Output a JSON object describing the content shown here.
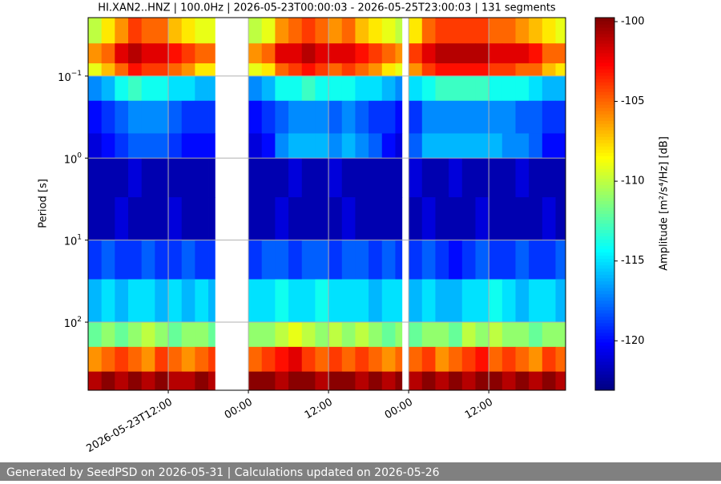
{
  "chart_data": {
    "type": "heatmap",
    "title": "HI.XAN2..HNZ | 100.0Hz | 2026-05-23T00:00:03 - 2026-05-25T23:00:03 | 131 segments",
    "ylabel": "Period [s]",
    "colorbar_label": "Amplitude [m²/s⁴/Hz] [dB]",
    "footer": "Generated by SeedPSD on 2026-05-31 | Calculations updated on 2026-05-26",
    "colormap": "jet",
    "yscale": "log",
    "y_inverted": true,
    "grid": true,
    "xlim": [
      "2026-05-23T00:00",
      "2026-05-25T23:30"
    ],
    "xticks": [
      {
        "value": "2026-05-23T12:00",
        "label": "2026-05-23T12:00"
      },
      {
        "value": "2026-05-24T00:00",
        "label": "00:00"
      },
      {
        "value": "2026-05-24T12:00",
        "label": "12:00"
      },
      {
        "value": "2026-05-25T00:00",
        "label": "00:00"
      },
      {
        "value": "2026-05-25T12:00",
        "label": "12:00"
      }
    ],
    "ylim": [
      0.0194,
      676
    ],
    "yticks": [
      {
        "value": 0.1,
        "label": "10",
        "exponent": "−1"
      },
      {
        "value": 1,
        "label": "10",
        "exponent": "0"
      },
      {
        "value": 10,
        "label": "10",
        "exponent": "1"
      },
      {
        "value": 100,
        "label": "10",
        "exponent": "2"
      }
    ],
    "clim": [
      -123.1,
      -99.75
    ],
    "cticks": [
      -100,
      -105,
      -110,
      -115,
      -120
    ],
    "x_edges": [
      "2026-05-23T00:00",
      "2026-05-23T02:00",
      "2026-05-23T04:00",
      "2026-05-23T06:00",
      "2026-05-23T08:00",
      "2026-05-23T10:00",
      "2026-05-23T12:00",
      "2026-05-23T14:00",
      "2026-05-23T16:00",
      "2026-05-23T18:00",
      "2026-05-23T19:00",
      "2026-05-24T00:00",
      "2026-05-24T02:00",
      "2026-05-24T04:00",
      "2026-05-24T06:00",
      "2026-05-24T08:00",
      "2026-05-24T10:00",
      "2026-05-24T12:00",
      "2026-05-24T14:00",
      "2026-05-24T16:00",
      "2026-05-24T18:00",
      "2026-05-24T20:00",
      "2026-05-24T22:00",
      "2026-05-24T23:00",
      "2026-05-25T00:00",
      "2026-05-25T02:00",
      "2026-05-25T04:00",
      "2026-05-25T06:00",
      "2026-05-25T08:00",
      "2026-05-25T10:00",
      "2026-05-25T12:00",
      "2026-05-25T14:00",
      "2026-05-25T16:00",
      "2026-05-25T18:00",
      "2026-05-25T20:00",
      "2026-05-25T22:00",
      "2026-05-25T23:30"
    ],
    "y_edges": [
      0.0194,
      0.04,
      0.07,
      0.1,
      0.2,
      0.5,
      1,
      3,
      10,
      30,
      100,
      200,
      400,
      676
    ],
    "z": [
      [
        -110,
        -108,
        -106,
        -104,
        -105,
        -105,
        -107,
        -108,
        -109,
        -109,
        null,
        -110,
        -109,
        -106,
        -105,
        -104,
        -105,
        -106,
        -105,
        -107,
        -108,
        -109,
        -110,
        null,
        -108,
        -105,
        -104,
        -104,
        -104,
        -104,
        -105,
        -105,
        -106,
        -107,
        -108,
        -109
      ],
      [
        -106,
        -105,
        -102,
        -101,
        -102,
        -102,
        -103,
        -104,
        -105,
        -105,
        null,
        -106,
        -105,
        -102,
        -102,
        -101,
        -102,
        -102,
        -102,
        -103,
        -104,
        -105,
        -106,
        null,
        -104,
        -102,
        -101,
        -101,
        -101,
        -101,
        -102,
        -102,
        -102,
        -103,
        -105,
        -105
      ],
      [
        -109,
        -107,
        -105,
        -103,
        -104,
        -104,
        -105,
        -106,
        -108,
        -108,
        null,
        -109,
        -108,
        -105,
        -104,
        -103,
        -104,
        -105,
        -104,
        -105,
        -106,
        -108,
        -109,
        null,
        -106,
        -104,
        -103,
        -103,
        -103,
        -103,
        -104,
        -104,
        -105,
        -105,
        -107,
        -108
      ],
      [
        -117,
        -116,
        -114,
        -113,
        -114,
        -114,
        -115,
        -115,
        -116,
        -116,
        null,
        -117,
        -116,
        -114,
        -114,
        -113,
        -114,
        -114,
        -114,
        -115,
        -115,
        -116,
        -117,
        null,
        -115,
        -114,
        -113,
        -113,
        -113,
        -113,
        -114,
        -114,
        -114,
        -115,
        -116,
        -116
      ],
      [
        -120,
        -119,
        -118,
        -117,
        -117,
        -117,
        -118,
        -119,
        -119,
        -119,
        null,
        -120,
        -119,
        -118,
        -117,
        -117,
        -117,
        -118,
        -117,
        -118,
        -119,
        -119,
        -120,
        null,
        -119,
        -117,
        -117,
        -117,
        -117,
        -117,
        -117,
        -117,
        -118,
        -118,
        -119,
        -119
      ],
      [
        -121,
        -120,
        -119,
        -118,
        -118,
        -118,
        -119,
        -120,
        -120,
        -120,
        null,
        -121,
        -120,
        -117,
        -116,
        -116,
        -116,
        -117,
        -116,
        -117,
        -118,
        -120,
        -121,
        null,
        -118,
        -116,
        -116,
        -116,
        -116,
        -116,
        -116,
        -117,
        -117,
        -118,
        -120,
        -120
      ],
      [
        -122,
        -122,
        -122,
        -121,
        -122,
        -122,
        -122,
        -122,
        -122,
        -122,
        null,
        -122,
        -122,
        -122,
        -121,
        -122,
        -122,
        -121,
        -122,
        -122,
        -122,
        -122,
        -122,
        null,
        -121,
        -122,
        -122,
        -121,
        -122,
        -122,
        -122,
        -122,
        -121,
        -122,
        -122,
        -122
      ],
      [
        -122,
        -122,
        -121,
        -122,
        -122,
        -122,
        -121,
        -122,
        -122,
        -122,
        null,
        -122,
        -122,
        -121,
        -122,
        -122,
        -122,
        -122,
        -121,
        -122,
        -122,
        -122,
        -122,
        null,
        -122,
        -121,
        -122,
        -122,
        -122,
        -121,
        -122,
        -122,
        -122,
        -122,
        -121,
        -122
      ],
      [
        -119,
        -118,
        -119,
        -119,
        -118,
        -119,
        -119,
        -118,
        -119,
        -119,
        null,
        -119,
        -118,
        -118,
        -119,
        -118,
        -118,
        -119,
        -118,
        -118,
        -119,
        -118,
        -119,
        null,
        -119,
        -118,
        -119,
        -120,
        -119,
        -118,
        -119,
        -119,
        -118,
        -119,
        -119,
        -118
      ],
      [
        -116,
        -115,
        -116,
        -115,
        -115,
        -116,
        -115,
        -116,
        -115,
        -116,
        null,
        -115,
        -115,
        -114,
        -115,
        -115,
        -114,
        -115,
        -115,
        -115,
        -116,
        -115,
        -115,
        null,
        -116,
        -115,
        -116,
        -116,
        -115,
        -115,
        -114,
        -115,
        -116,
        -115,
        -115,
        -116
      ],
      [
        -112,
        -111,
        -112,
        -111,
        -110,
        -111,
        -112,
        -111,
        -111,
        -112,
        null,
        -111,
        -111,
        -110,
        -109,
        -110,
        -111,
        -110,
        -111,
        -110,
        -111,
        -112,
        -111,
        null,
        -112,
        -111,
        -111,
        -112,
        -110,
        -111,
        -110,
        -111,
        -111,
        -112,
        -111,
        -111
      ],
      [
        -106,
        -105,
        -104,
        -105,
        -106,
        -104,
        -105,
        -106,
        -105,
        -104,
        null,
        -105,
        -104,
        -103,
        -102,
        -104,
        -105,
        -104,
        -105,
        -104,
        -105,
        -106,
        -105,
        null,
        -105,
        -104,
        -106,
        -105,
        -104,
        -103,
        -105,
        -104,
        -105,
        -106,
        -104,
        -105
      ],
      [
        -101,
        -100,
        -101,
        -100,
        -101,
        -100,
        -101,
        -101,
        -100,
        -101,
        null,
        -100,
        -100,
        -101,
        -100,
        -100,
        -101,
        -100,
        -100,
        -101,
        -100,
        -101,
        -100,
        null,
        -101,
        -100,
        -101,
        -100,
        -101,
        -100,
        -100,
        -101,
        -100,
        -101,
        -100,
        -101
      ]
    ]
  }
}
